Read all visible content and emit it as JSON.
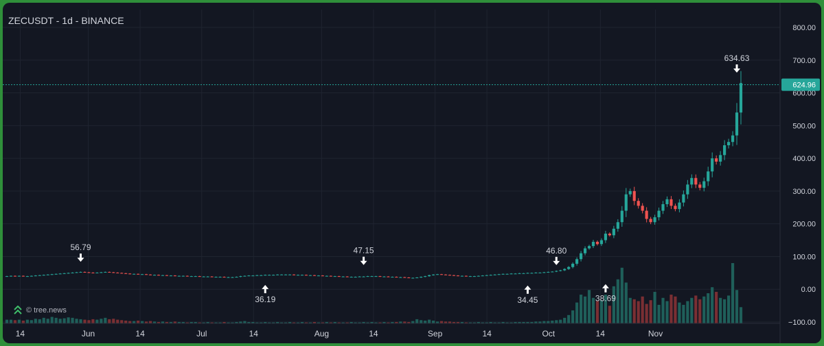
{
  "header": {
    "title": "ZECUSDT - 1d - BINANCE"
  },
  "watermark": {
    "text": "© tree.news",
    "icon": "double-chevron-up-icon"
  },
  "colors": {
    "up": "#26a69a",
    "down": "#ef5350",
    "bg": "#131722",
    "grid": "#1f2430",
    "text": "#d1d4dc",
    "volUp": "#1f5f5a",
    "volDown": "#7a2f33",
    "priceLine": "#26a69a"
  },
  "chart_data": {
    "type": "candlestick",
    "symbol": "ZECUSDT",
    "interval": "1d",
    "exchange": "BINANCE",
    "y_axis": {
      "ticks": [
        "800.00",
        "700.00",
        "600.00",
        "500.00",
        "400.00",
        "300.00",
        "200.00",
        "100.00",
        "0.00",
        "−100.00"
      ],
      "min": -100,
      "max": 800
    },
    "x_axis": {
      "ticks": [
        "14",
        "Jun",
        "14",
        "Jul",
        "14",
        "Aug",
        "14",
        "Sep",
        "14",
        "Oct",
        "14",
        "Nov"
      ]
    },
    "last_price": "624.96",
    "annotations": [
      {
        "label": "56.79",
        "direction": "down",
        "value": 56.79
      },
      {
        "label": "36.19",
        "direction": "up",
        "value": 36.19
      },
      {
        "label": "47.15",
        "direction": "down",
        "value": 47.15
      },
      {
        "label": "34.45",
        "direction": "up",
        "value": 34.45
      },
      {
        "label": "46.80",
        "direction": "down",
        "value": 46.8
      },
      {
        "label": "38.69",
        "direction": "up",
        "value": 38.69
      },
      {
        "label": "634.63",
        "direction": "down",
        "value": 634.63
      }
    ],
    "closes": [
      40,
      41,
      40,
      41,
      40,
      40,
      41,
      42,
      43,
      44,
      45,
      46,
      47,
      48,
      49,
      50,
      51,
      52,
      53,
      52,
      51,
      50,
      51,
      52,
      53,
      52,
      51,
      50,
      49,
      48,
      47,
      47,
      46,
      46,
      45,
      44,
      44,
      43,
      43,
      42,
      42,
      41,
      41,
      41,
      40,
      40,
      40,
      39,
      39,
      39,
      38,
      38,
      38,
      37,
      37,
      37,
      38,
      40,
      41,
      42,
      42,
      43,
      43,
      44,
      44,
      44,
      45,
      45,
      45,
      45,
      44,
      44,
      44,
      43,
      43,
      42,
      42,
      41,
      41,
      40,
      40,
      39,
      39,
      38,
      38,
      38,
      39,
      39,
      40,
      40,
      40,
      39,
      39,
      38,
      38,
      37,
      37,
      36,
      35,
      35,
      36,
      38,
      40,
      43,
      45,
      46,
      45,
      44,
      43,
      42,
      41,
      41,
      40,
      40,
      40,
      41,
      42,
      43,
      44,
      45,
      46,
      47,
      47,
      48,
      48,
      49,
      49,
      50,
      50,
      51,
      51,
      52,
      53,
      54,
      56,
      58,
      62,
      68,
      78,
      92,
      110,
      125,
      132,
      145,
      138,
      150,
      170,
      165,
      185,
      205,
      240,
      290,
      300,
      270,
      255,
      240,
      215,
      205,
      220,
      240,
      260,
      275,
      255,
      245,
      265,
      290,
      320,
      340,
      320,
      310,
      330,
      360,
      400,
      390,
      410,
      440,
      450,
      470,
      540,
      630
    ],
    "volumes": [
      8,
      8,
      7,
      8,
      6,
      8,
      7,
      10,
      9,
      12,
      10,
      14,
      12,
      10,
      11,
      13,
      12,
      10,
      9,
      8,
      7,
      9,
      8,
      10,
      12,
      9,
      10,
      8,
      7,
      6,
      5,
      5,
      6,
      5,
      4,
      5,
      4,
      3,
      4,
      3,
      3,
      4,
      3,
      3,
      2,
      3,
      3,
      2,
      2,
      3,
      2,
      2,
      2,
      3,
      2,
      2,
      3,
      4,
      5,
      3,
      3,
      2,
      2,
      3,
      2,
      2,
      3,
      2,
      2,
      3,
      2,
      2,
      3,
      2,
      2,
      3,
      2,
      2,
      3,
      2,
      3,
      2,
      2,
      2,
      3,
      2,
      2,
      3,
      2,
      3,
      2,
      2,
      3,
      2,
      3,
      3,
      4,
      4,
      3,
      5,
      9,
      7,
      6,
      8,
      6,
      4,
      5,
      4,
      4,
      3,
      3,
      3,
      2,
      2,
      2,
      3,
      2,
      2,
      3,
      2,
      2,
      3,
      2,
      2,
      3,
      3,
      3,
      3,
      3,
      4,
      4,
      5,
      5,
      6,
      7,
      8,
      12,
      18,
      28,
      45,
      62,
      58,
      72,
      55,
      48,
      50,
      62,
      38,
      80,
      95,
      120,
      88,
      55,
      52,
      48,
      58,
      42,
      50,
      68,
      40,
      55,
      48,
      62,
      58,
      45,
      40,
      48,
      55,
      60,
      52,
      58,
      65,
      78,
      68,
      55,
      52,
      60,
      130,
      72,
      35
    ],
    "volume_tick_labels_note": ""
  }
}
